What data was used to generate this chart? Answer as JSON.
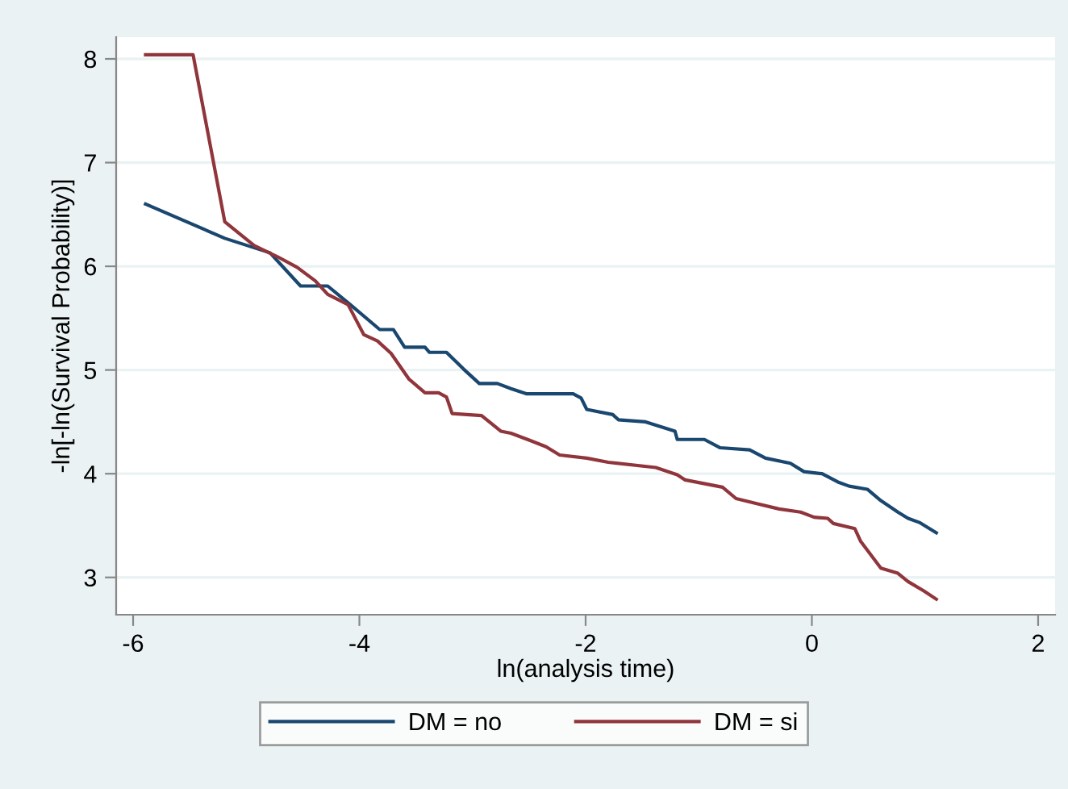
{
  "chart_data": {
    "type": "line",
    "xlabel": "ln(analysis time)",
    "ylabel": "-ln[-ln(Survival Probability)]",
    "xlim": [
      -6.15,
      2.15
    ],
    "ylim": [
      2.64,
      8.21
    ],
    "xticks": [
      -6,
      -4,
      -2,
      0,
      2
    ],
    "yticks": [
      3,
      4,
      5,
      6,
      7,
      8
    ],
    "grid": "y",
    "legend": "bottom",
    "marker": "none",
    "line_style": "solid",
    "series": [
      {
        "name": "DM = no",
        "color": "#1a476f",
        "x": [
          -5.89,
          -5.19,
          -4.79,
          -4.52,
          -4.28,
          -4.08,
          -3.82,
          -3.7,
          -3.6,
          -3.42,
          -3.38,
          -3.23,
          -3.08,
          -3.01,
          -2.94,
          -2.78,
          -2.66,
          -2.52,
          -2.11,
          -2.04,
          -1.99,
          -1.76,
          -1.71,
          -1.47,
          -1.21,
          -1.19,
          -0.95,
          -0.81,
          -0.55,
          -0.41,
          -0.19,
          -0.07,
          0.09,
          0.23,
          0.33,
          0.49,
          0.61,
          0.76,
          0.85,
          0.95,
          1.1
        ],
        "values": [
          6.6,
          6.27,
          6.13,
          5.81,
          5.81,
          5.63,
          5.39,
          5.39,
          5.22,
          5.22,
          5.17,
          5.17,
          5.01,
          4.94,
          4.87,
          4.87,
          4.82,
          4.77,
          4.77,
          4.73,
          4.62,
          4.57,
          4.52,
          4.5,
          4.41,
          4.33,
          4.33,
          4.25,
          4.23,
          4.15,
          4.1,
          4.02,
          4.0,
          3.92,
          3.88,
          3.85,
          3.74,
          3.63,
          3.57,
          3.53,
          3.43
        ]
      },
      {
        "name": "DM = si",
        "color": "#90353b",
        "x": [
          -5.89,
          -5.47,
          -5.19,
          -4.93,
          -4.72,
          -4.55,
          -4.39,
          -4.28,
          -4.1,
          -3.96,
          -3.84,
          -3.72,
          -3.56,
          -3.42,
          -3.3,
          -3.23,
          -3.18,
          -2.92,
          -2.75,
          -2.66,
          -2.49,
          -2.35,
          -2.23,
          -1.99,
          -1.8,
          -1.38,
          -1.19,
          -1.12,
          -0.79,
          -0.67,
          -0.48,
          -0.29,
          -0.1,
          0.02,
          0.14,
          0.19,
          0.38,
          0.43,
          0.52,
          0.61,
          0.76,
          0.85,
          0.99,
          1.1
        ],
        "values": [
          8.04,
          8.04,
          6.43,
          6.2,
          6.09,
          5.99,
          5.86,
          5.73,
          5.63,
          5.34,
          5.28,
          5.16,
          4.91,
          4.78,
          4.78,
          4.74,
          4.58,
          4.56,
          4.41,
          4.39,
          4.32,
          4.26,
          4.18,
          4.15,
          4.11,
          4.06,
          3.99,
          3.94,
          3.87,
          3.76,
          3.71,
          3.66,
          3.63,
          3.58,
          3.57,
          3.52,
          3.47,
          3.35,
          3.22,
          3.09,
          3.04,
          2.96,
          2.87,
          2.79
        ]
      }
    ]
  }
}
